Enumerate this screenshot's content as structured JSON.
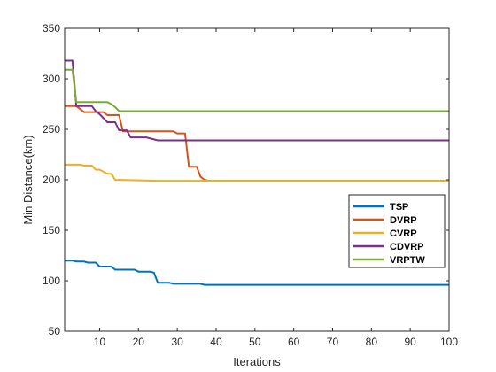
{
  "chart_data": {
    "type": "line",
    "title": "",
    "xlabel": "Iterations",
    "ylabel": "Min Distance(km)",
    "xlim": [
      1,
      100
    ],
    "ylim": [
      50,
      350
    ],
    "xticks": [
      10,
      20,
      30,
      40,
      50,
      60,
      70,
      80,
      90,
      100
    ],
    "yticks": [
      50,
      100,
      150,
      200,
      250,
      300,
      350
    ],
    "grid": false,
    "legend_position": "lower-right",
    "series": [
      {
        "name": "TSP",
        "color": "#0072BD",
        "x": [
          1,
          3,
          4,
          6,
          7,
          9,
          10,
          13,
          14,
          19,
          20,
          23,
          24,
          25,
          28,
          29,
          36,
          37,
          100
        ],
        "y": [
          120,
          120,
          119,
          119,
          118,
          118,
          114,
          114,
          111,
          111,
          109,
          109,
          108,
          98,
          98,
          97,
          97,
          96,
          96
        ]
      },
      {
        "name": "DVRP",
        "color": "#D95319",
        "x": [
          1,
          4,
          6,
          11,
          12,
          15,
          16,
          24,
          29,
          30,
          32,
          33,
          35,
          36,
          37,
          38,
          39,
          100
        ],
        "y": [
          273,
          273,
          267,
          267,
          264,
          264,
          248,
          248,
          248,
          246,
          246,
          213,
          213,
          203,
          200,
          199,
          199,
          199
        ]
      },
      {
        "name": "CVRP",
        "color": "#EDB120",
        "x": [
          1,
          5,
          6,
          8,
          9,
          10,
          12,
          13,
          14,
          25,
          100
        ],
        "y": [
          215,
          215,
          214,
          214,
          210,
          210,
          206,
          206,
          200,
          199,
          199
        ]
      },
      {
        "name": "CDVRP",
        "color": "#7E2F8E",
        "x": [
          1,
          3,
          4,
          8,
          9,
          10,
          12,
          14,
          15,
          17,
          18,
          22,
          24,
          25,
          100
        ],
        "y": [
          318,
          318,
          273,
          273,
          268,
          265,
          257,
          257,
          249,
          249,
          242,
          242,
          240,
          239,
          239
        ]
      },
      {
        "name": "VRPTW",
        "color": "#77AC30",
        "x": [
          1,
          3,
          4,
          12,
          13,
          14,
          15,
          100
        ],
        "y": [
          309,
          309,
          277,
          277,
          275,
          272,
          268,
          268
        ]
      }
    ]
  }
}
